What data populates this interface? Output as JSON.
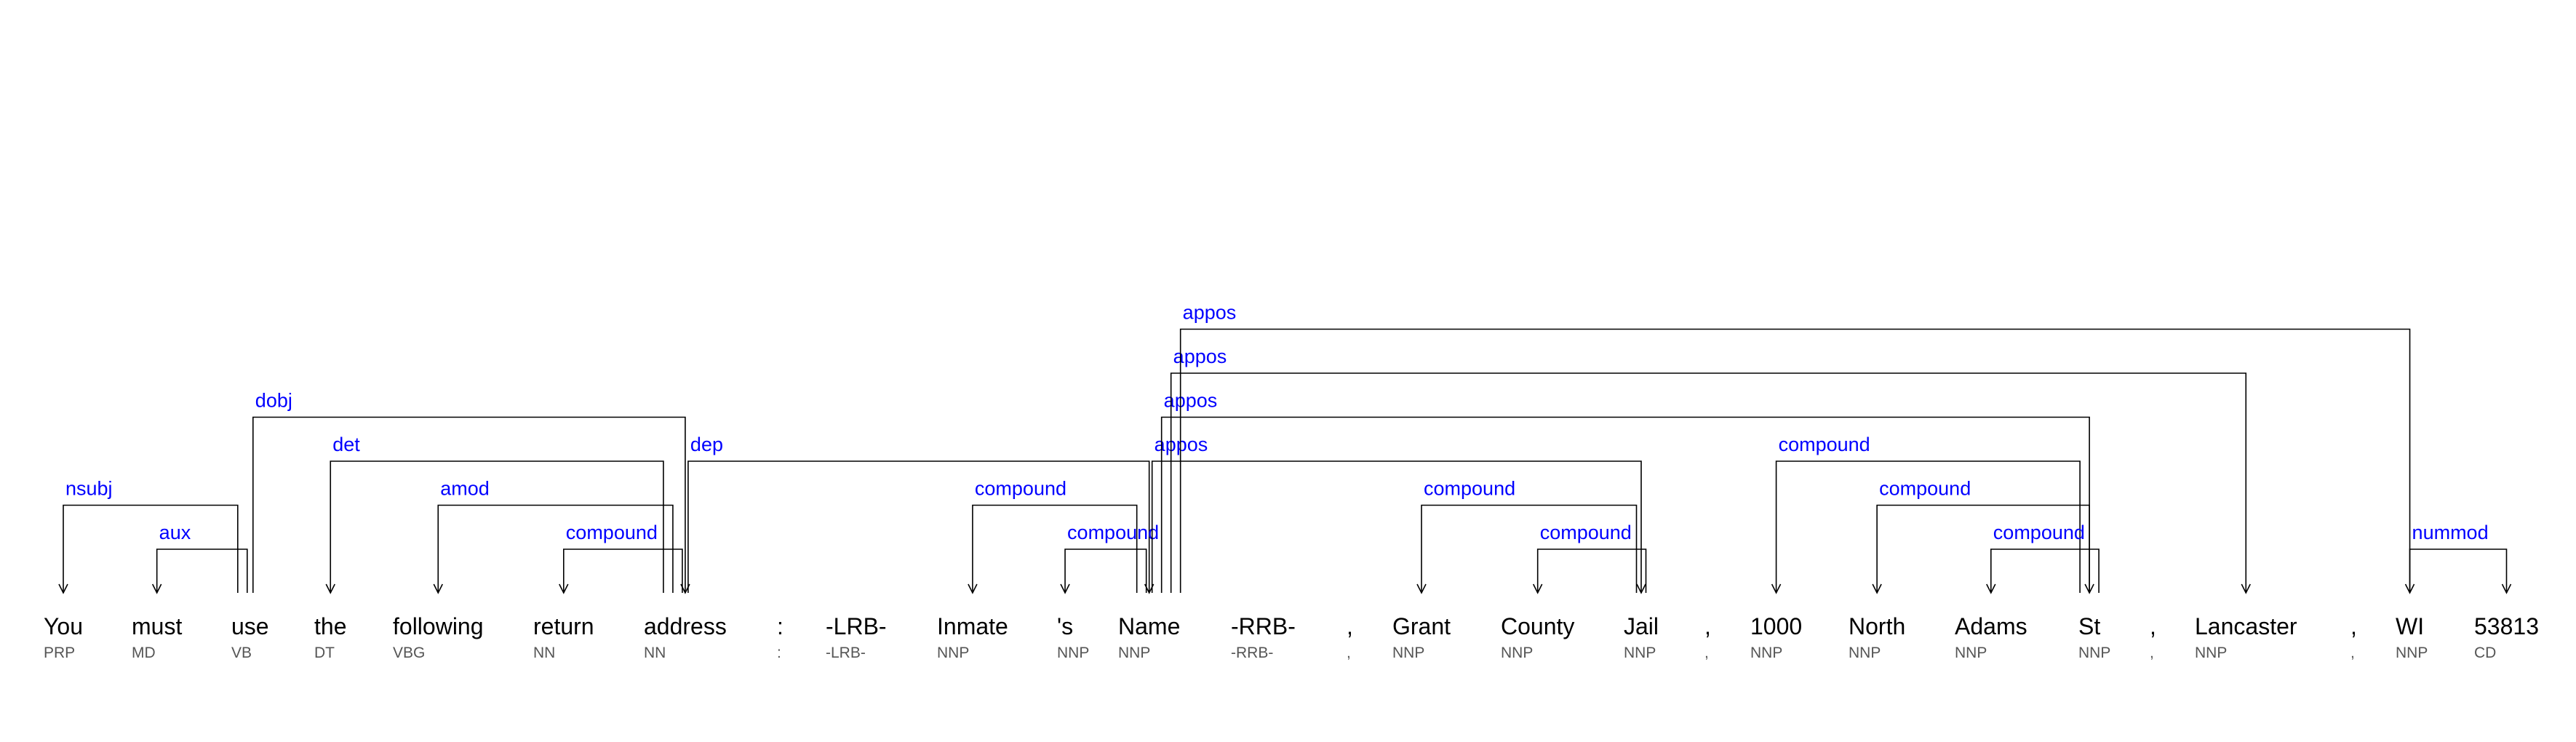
{
  "colors": {
    "relation": "#0000ff",
    "word": "#000000",
    "tag": "#555555",
    "arc": "#000000",
    "background": "#ffffff"
  },
  "tokens": [
    {
      "word": "You",
      "tag": "PRP"
    },
    {
      "word": "must",
      "tag": "MD"
    },
    {
      "word": "use",
      "tag": "VB"
    },
    {
      "word": "the",
      "tag": "DT"
    },
    {
      "word": "following",
      "tag": "VBG"
    },
    {
      "word": "return",
      "tag": "NN"
    },
    {
      "word": "address",
      "tag": "NN"
    },
    {
      "word": ":",
      "tag": ":"
    },
    {
      "word": "-LRB-",
      "tag": "-LRB-"
    },
    {
      "word": "Inmate",
      "tag": "NNP"
    },
    {
      "word": "'s",
      "tag": "NNP"
    },
    {
      "word": "Name",
      "tag": "NNP"
    },
    {
      "word": "-RRB-",
      "tag": "-RRB-"
    },
    {
      "word": ",",
      "tag": ","
    },
    {
      "word": "Grant",
      "tag": "NNP"
    },
    {
      "word": "County",
      "tag": "NNP"
    },
    {
      "word": "Jail",
      "tag": "NNP"
    },
    {
      "word": ",",
      "tag": ","
    },
    {
      "word": "1000",
      "tag": "NNP"
    },
    {
      "word": "North",
      "tag": "NNP"
    },
    {
      "word": "Adams",
      "tag": "NNP"
    },
    {
      "word": "St",
      "tag": "NNP"
    },
    {
      "word": ",",
      "tag": ","
    },
    {
      "word": "Lancaster",
      "tag": "NNP"
    },
    {
      "word": ",",
      "tag": ","
    },
    {
      "word": "WI",
      "tag": "NNP"
    },
    {
      "word": "53813",
      "tag": "CD"
    }
  ],
  "dependencies": [
    {
      "label": "nsubj",
      "head": 2,
      "dep": 0
    },
    {
      "label": "aux",
      "head": 2,
      "dep": 1
    },
    {
      "label": "dobj",
      "head": 2,
      "dep": 6
    },
    {
      "label": "det",
      "head": 6,
      "dep": 3
    },
    {
      "label": "amod",
      "head": 6,
      "dep": 4
    },
    {
      "label": "compound",
      "head": 6,
      "dep": 5
    },
    {
      "label": "dep",
      "head": 6,
      "dep": 11
    },
    {
      "label": "compound",
      "head": 11,
      "dep": 9
    },
    {
      "label": "compound",
      "head": 11,
      "dep": 10
    },
    {
      "label": "appos",
      "head": 11,
      "dep": 16
    },
    {
      "label": "appos",
      "head": 11,
      "dep": 21
    },
    {
      "label": "appos",
      "head": 11,
      "dep": 23
    },
    {
      "label": "appos",
      "head": 11,
      "dep": 25
    },
    {
      "label": "compound",
      "head": 16,
      "dep": 14
    },
    {
      "label": "compound",
      "head": 16,
      "dep": 15
    },
    {
      "label": "compound",
      "head": 21,
      "dep": 18
    },
    {
      "label": "compound",
      "head": 21,
      "dep": 19
    },
    {
      "label": "compound",
      "head": 21,
      "dep": 20
    },
    {
      "label": "nummod",
      "head": 25,
      "dep": 26
    }
  ]
}
